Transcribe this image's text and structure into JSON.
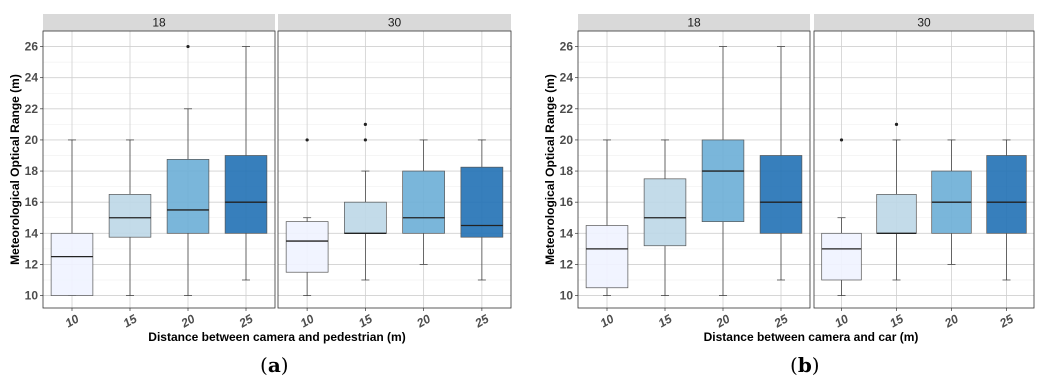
{
  "chart_data": [
    {
      "type": "boxplot",
      "panel_label": "a",
      "xlabel": "Distance between camera and pedestrian (m)",
      "ylabel": "Meteorological Optical Range (m)",
      "ylim": [
        9.2,
        27
      ],
      "yticks": [
        "10",
        "12",
        "14",
        "16",
        "18",
        "20",
        "22",
        "24",
        "26"
      ],
      "categories": [
        "10",
        "15",
        "20",
        "25"
      ],
      "colors": [
        "#eff3ff",
        "#bdd7e7",
        "#6baed6",
        "#2171b5"
      ],
      "grid": true,
      "facets": [
        {
          "label": "18",
          "boxes": [
            {
              "x": "10",
              "min": 10,
              "q1": 10,
              "median": 12.5,
              "q3": 14,
              "max": 20,
              "outliers": []
            },
            {
              "x": "15",
              "min": 10,
              "q1": 13.75,
              "median": 15,
              "q3": 16.5,
              "max": 20,
              "outliers": []
            },
            {
              "x": "20",
              "min": 10,
              "q1": 14,
              "median": 15.5,
              "q3": 18.75,
              "max": 22,
              "outliers": [
                26
              ]
            },
            {
              "x": "25",
              "min": 11,
              "q1": 14,
              "median": 16,
              "q3": 19,
              "max": 26,
              "outliers": []
            }
          ]
        },
        {
          "label": "30",
          "boxes": [
            {
              "x": "10",
              "min": 10,
              "q1": 11.5,
              "median": 13.5,
              "q3": 14.75,
              "max": 15,
              "outliers": [
                20
              ]
            },
            {
              "x": "15",
              "min": 11,
              "q1": 14,
              "median": 14,
              "q3": 16,
              "max": 18,
              "outliers": [
                20,
                21
              ]
            },
            {
              "x": "20",
              "min": 12,
              "q1": 14,
              "median": 15,
              "q3": 18,
              "max": 20,
              "outliers": []
            },
            {
              "x": "25",
              "min": 11,
              "q1": 13.75,
              "median": 14.5,
              "q3": 18.25,
              "max": 20,
              "outliers": []
            }
          ]
        }
      ]
    },
    {
      "type": "boxplot",
      "panel_label": "b",
      "xlabel": "Distance between camera and car (m)",
      "ylabel": "Meteorological Optical Range (m)",
      "ylim": [
        9.2,
        27
      ],
      "yticks": [
        "10",
        "12",
        "14",
        "16",
        "18",
        "20",
        "22",
        "24",
        "26"
      ],
      "categories": [
        "10",
        "15",
        "20",
        "25"
      ],
      "colors": [
        "#eff3ff",
        "#bdd7e7",
        "#6baed6",
        "#2171b5"
      ],
      "grid": true,
      "facets": [
        {
          "label": "18",
          "boxes": [
            {
              "x": "10",
              "min": 10,
              "q1": 10.5,
              "median": 13,
              "q3": 14.5,
              "max": 20,
              "outliers": []
            },
            {
              "x": "15",
              "min": 10,
              "q1": 13.2,
              "median": 15,
              "q3": 17.5,
              "max": 20,
              "outliers": []
            },
            {
              "x": "20",
              "min": 10,
              "q1": 14.75,
              "median": 18,
              "q3": 20,
              "max": 26,
              "outliers": []
            },
            {
              "x": "25",
              "min": 11,
              "q1": 14,
              "median": 16,
              "q3": 19,
              "max": 26,
              "outliers": []
            }
          ]
        },
        {
          "label": "30",
          "boxes": [
            {
              "x": "10",
              "min": 10,
              "q1": 11,
              "median": 13,
              "q3": 14,
              "max": 15,
              "outliers": [
                20
              ]
            },
            {
              "x": "15",
              "min": 11,
              "q1": 14,
              "median": 14,
              "q3": 16.5,
              "max": 20,
              "outliers": [
                21
              ]
            },
            {
              "x": "20",
              "min": 12,
              "q1": 14,
              "median": 16,
              "q3": 18,
              "max": 20,
              "outliers": []
            },
            {
              "x": "25",
              "min": 11,
              "q1": 14,
              "median": 16,
              "q3": 19,
              "max": 20,
              "outliers": []
            }
          ]
        }
      ]
    }
  ]
}
